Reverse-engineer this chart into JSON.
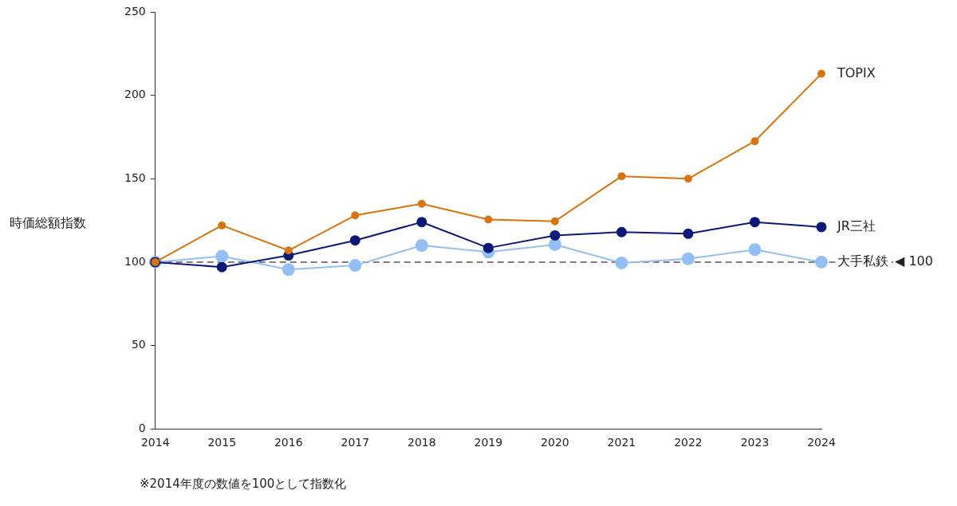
{
  "chart_data": {
    "type": "line",
    "ylabel": "時価総額指数",
    "categories": [
      "2014",
      "2015",
      "2016",
      "2017",
      "2018",
      "2019",
      "2020",
      "2021",
      "2022",
      "2023",
      "2024"
    ],
    "series": [
      {
        "name": "TOPIX",
        "color": "#d9730d",
        "values": [
          100,
          122,
          107,
          128,
          135,
          125.5,
          124.5,
          151.5,
          150,
          172.5,
          213
        ]
      },
      {
        "name": "JR三社",
        "color": "#0b1a78",
        "values": [
          100,
          97,
          104,
          113,
          124,
          108.5,
          116,
          118,
          117,
          124,
          121
        ]
      },
      {
        "name": "大手私鉄",
        "color": "#93bff5",
        "values": [
          100,
          103.5,
          95.5,
          98,
          110,
          106,
          110.5,
          99.5,
          102,
          107.5,
          100
        ]
      }
    ],
    "ylim": [
      0,
      250
    ],
    "yticks": [
      0,
      50,
      100,
      150,
      200,
      250
    ],
    "grid": false,
    "legend": false,
    "marker": "circle",
    "line_style": "solid",
    "ref_lines": [
      {
        "axis": "y",
        "value": 100,
        "label": "◀ 100",
        "color": "#555555",
        "line_style": "dashed"
      }
    ],
    "annotations": [
      "※2014年度の数値を100として指数化"
    ]
  }
}
